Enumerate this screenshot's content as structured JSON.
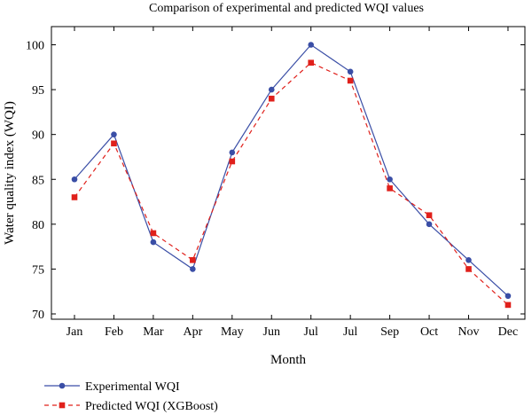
{
  "chart_data": {
    "type": "line",
    "title": "Comparison of experimental and predicted WQI values",
    "xlabel": "Month",
    "ylabel": "Water quality index (WQI)",
    "categories": [
      "Jan",
      "Feb",
      "Mar",
      "Apr",
      "May",
      "Jun",
      "Jul",
      "Jul",
      "Sep",
      "Oct",
      "Nov",
      "Dec"
    ],
    "ylim": [
      70,
      100
    ],
    "yticks": [
      70,
      75,
      80,
      85,
      90,
      95,
      100
    ],
    "grid": false,
    "legend_position": "bottom-left",
    "series": [
      {
        "name": "Experimental WQI",
        "color": "#3a4ea6",
        "line_style": "solid",
        "marker": "circle",
        "values": [
          85,
          90,
          78,
          75,
          88,
          95,
          100,
          97,
          85,
          80,
          76,
          72
        ]
      },
      {
        "name": "Predicted WQI (XGBoost)",
        "color": "#e0201b",
        "line_style": "dashed",
        "marker": "square",
        "values": [
          83,
          89,
          79,
          76,
          87,
          94,
          98,
          96,
          84,
          81,
          75,
          71
        ]
      }
    ]
  }
}
